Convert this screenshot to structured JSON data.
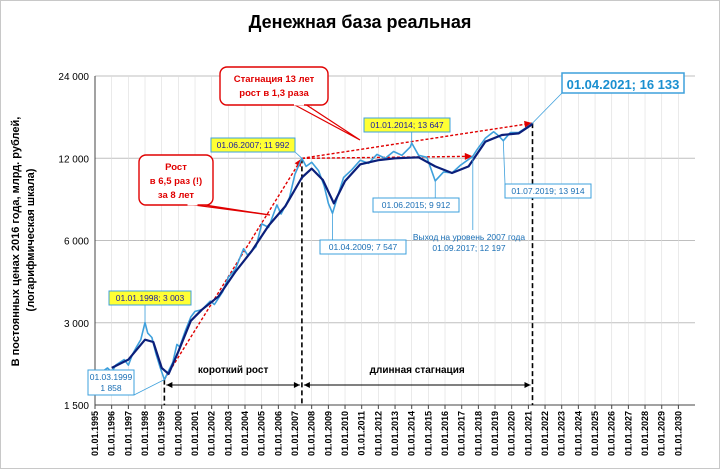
{
  "chart_data": {
    "type": "line",
    "title": "Денежная база реальная",
    "ylabel_lines": [
      "В постоянных ценах 2016 года, млрд. рублей,",
      "(логарифмическая шкала)"
    ],
    "y_scale": "log",
    "ylim": [
      1500,
      28000
    ],
    "yticks": [
      1500,
      3000,
      6000,
      12000,
      24000
    ],
    "ytick_labels": [
      "1 500",
      "3 000",
      "6 000",
      "12 000",
      "24 000"
    ],
    "xlim": [
      "1995-01-01",
      "2030-12-31"
    ],
    "xtick_labels": [
      "01.01.1995",
      "01.01.1996",
      "01.01.1997",
      "01.01.1998",
      "01.01.1999",
      "01.01.2000",
      "01.01.2001",
      "01.01.2002",
      "01.01.2003",
      "01.01.2004",
      "01.01.2005",
      "01.01.2006",
      "01.01.2007",
      "01.01.2008",
      "01.01.2009",
      "01.01.2010",
      "01.01.2011",
      "01.01.2012",
      "01.01.2013",
      "01.01.2014",
      "01.01.2015",
      "01.01.2016",
      "01.01.2017",
      "01.01.2018",
      "01.01.2019",
      "01.01.2020",
      "01.01.2021",
      "01.01.2022",
      "01.01.2023",
      "01.01.2024",
      "01.01.2025",
      "01.01.2026",
      "01.01.2027",
      "01.01.2028",
      "01.01.2029",
      "01.01.2030"
    ],
    "grid": true,
    "series": [
      {
        "key": "monthly",
        "color": "#3ea0dc",
        "points": [
          [
            "1995-07-01",
            2000
          ],
          [
            "1995-10-01",
            2050
          ],
          [
            "1996-01-01",
            1980
          ],
          [
            "1996-04-01",
            2100
          ],
          [
            "1996-07-01",
            2150
          ],
          [
            "1996-10-01",
            2200
          ],
          [
            "1997-01-01",
            2100
          ],
          [
            "1997-04-01",
            2300
          ],
          [
            "1997-07-01",
            2450
          ],
          [
            "1997-10-01",
            2600
          ],
          [
            "1998-01-01",
            3003
          ],
          [
            "1998-03-01",
            2750
          ],
          [
            "1998-06-01",
            2650
          ],
          [
            "1998-09-01",
            2300
          ],
          [
            "1998-12-01",
            2050
          ],
          [
            "1999-03-01",
            1858
          ],
          [
            "1999-06-01",
            2000
          ],
          [
            "1999-09-01",
            2150
          ],
          [
            "1999-12-01",
            2500
          ],
          [
            "2000-02-01",
            2450
          ],
          [
            "2000-06-01",
            2800
          ],
          [
            "2000-10-01",
            3150
          ],
          [
            "2001-01-01",
            3300
          ],
          [
            "2001-06-01",
            3350
          ],
          [
            "2001-12-01",
            3600
          ],
          [
            "2002-03-01",
            3500
          ],
          [
            "2002-09-01",
            3900
          ],
          [
            "2003-01-01",
            4400
          ],
          [
            "2003-06-01",
            4700
          ],
          [
            "2003-12-01",
            5600
          ],
          [
            "2004-03-01",
            5300
          ],
          [
            "2004-09-01",
            5700
          ],
          [
            "2005-01-01",
            6900
          ],
          [
            "2005-06-01",
            6700
          ],
          [
            "2005-12-01",
            8100
          ],
          [
            "2006-03-01",
            7500
          ],
          [
            "2006-09-01",
            8600
          ],
          [
            "2007-01-01",
            10500
          ],
          [
            "2007-06-01",
            11992
          ],
          [
            "2007-09-01",
            11200
          ],
          [
            "2008-01-01",
            11600
          ],
          [
            "2008-06-01",
            10800
          ],
          [
            "2008-10-01",
            9500
          ],
          [
            "2009-01-01",
            8200
          ],
          [
            "2009-04-01",
            7547
          ],
          [
            "2009-08-01",
            8800
          ],
          [
            "2009-12-01",
            10200
          ],
          [
            "2010-06-01",
            10900
          ],
          [
            "2010-12-01",
            11800
          ],
          [
            "2011-06-01",
            11500
          ],
          [
            "2011-12-01",
            12400
          ],
          [
            "2012-06-01",
            12000
          ],
          [
            "2012-12-01",
            12700
          ],
          [
            "2013-06-01",
            12300
          ],
          [
            "2013-12-01",
            13200
          ],
          [
            "2014-01-01",
            13647
          ],
          [
            "2014-06-01",
            12300
          ],
          [
            "2014-12-01",
            12100
          ],
          [
            "2015-06-01",
            9912
          ],
          [
            "2015-12-01",
            10700
          ],
          [
            "2016-06-01",
            10600
          ],
          [
            "2016-12-01",
            11300
          ],
          [
            "2017-09-01",
            12197
          ],
          [
            "2017-12-01",
            12900
          ],
          [
            "2018-06-01",
            14200
          ],
          [
            "2018-12-01",
            15000
          ],
          [
            "2019-03-01",
            14600
          ],
          [
            "2019-07-01",
            13914
          ],
          [
            "2019-12-01",
            14900
          ],
          [
            "2020-06-01",
            14900
          ],
          [
            "2020-12-01",
            15600
          ],
          [
            "2021-04-01",
            16133
          ]
        ]
      },
      {
        "key": "smoothed",
        "color": "#0b1f7a",
        "points": [
          [
            "1996-01-01",
            2050
          ],
          [
            "1997-01-01",
            2200
          ],
          [
            "1998-01-01",
            2600
          ],
          [
            "1998-07-01",
            2550
          ],
          [
            "1999-01-01",
            2050
          ],
          [
            "1999-06-01",
            1950
          ],
          [
            "2000-01-01",
            2350
          ],
          [
            "2000-10-01",
            3050
          ],
          [
            "2001-06-01",
            3350
          ],
          [
            "2002-06-01",
            3750
          ],
          [
            "2003-06-01",
            4600
          ],
          [
            "2004-06-01",
            5500
          ],
          [
            "2005-06-01",
            6800
          ],
          [
            "2006-06-01",
            8000
          ],
          [
            "2007-06-01",
            10200
          ],
          [
            "2008-01-01",
            11000
          ],
          [
            "2008-09-01",
            10000
          ],
          [
            "2009-05-01",
            8200
          ],
          [
            "2010-01-01",
            9900
          ],
          [
            "2010-12-01",
            11400
          ],
          [
            "2012-01-01",
            11800
          ],
          [
            "2013-01-01",
            12000
          ],
          [
            "2014-06-01",
            12100
          ],
          [
            "2015-06-01",
            11200
          ],
          [
            "2016-06-01",
            10600
          ],
          [
            "2017-06-01",
            11200
          ],
          [
            "2018-06-01",
            13800
          ],
          [
            "2019-06-01",
            14600
          ],
          [
            "2020-06-01",
            14800
          ],
          [
            "2021-04-01",
            16000
          ]
        ]
      }
    ],
    "trend_lines": [
      {
        "key": "growth",
        "from": [
          "1999-03-01",
          1858
        ],
        "to": [
          "2007-06-01",
          11992
        ],
        "color": "#e00000"
      },
      {
        "key": "stagnation",
        "from": [
          "2007-06-01",
          11992
        ],
        "to": [
          "2021-04-01",
          16133
        ],
        "color": "#e00000"
      },
      {
        "key": "return-2007-level",
        "from": [
          "2007-06-01",
          11992
        ],
        "to": [
          "2017-09-01",
          12197
        ],
        "color": "#e00000"
      }
    ],
    "vertical_markers": [
      "1999-03-01",
      "2007-06-01",
      "2021-04-01"
    ],
    "periods": [
      {
        "label": "короткий рост",
        "from": "1999-03-01",
        "to": "2007-06-01"
      },
      {
        "label": "длинная стагнация",
        "from": "2007-06-01",
        "to": "2021-04-01"
      }
    ],
    "annotations": [
      {
        "key": "1998",
        "lines": [
          "01.01.1998; 3 003"
        ],
        "style": "yellow"
      },
      {
        "key": "1999",
        "lines": [
          "01.03.1999",
          "1 858"
        ],
        "style": "blue"
      },
      {
        "key": "2007",
        "lines": [
          "01.06.2007; 11 992"
        ],
        "style": "yellow"
      },
      {
        "key": "2009",
        "lines": [
          "01.04.2009; 7 547"
        ],
        "style": "blue"
      },
      {
        "key": "2014",
        "lines": [
          "01.01.2014; 13 647"
        ],
        "style": "yellow"
      },
      {
        "key": "2015",
        "lines": [
          "01.06.2015; 9 912"
        ],
        "style": "blue"
      },
      {
        "key": "2017",
        "lines": [
          "Выход на уровень 2007 года",
          "01.09.2017; 12 197"
        ],
        "style": "plain"
      },
      {
        "key": "2019",
        "lines": [
          "01.07.2019; 13 914"
        ],
        "style": "blue"
      },
      {
        "key": "2021",
        "lines": [
          "01.04.2021; 16 133"
        ],
        "style": "big"
      }
    ],
    "callouts": [
      {
        "key": "growth",
        "lines": [
          "Рост",
          "в 6,5 раз (!)",
          "за 8 лет"
        ]
      },
      {
        "key": "stagnation",
        "lines": [
          "Стагнация 13 лет",
          "рост в 1,3 раза"
        ]
      }
    ],
    "colors": {
      "grid": "#bfbfbf",
      "annotation_border": "#3ea0dc",
      "annotation_yellow": "#ffff33",
      "callout_border": "#e00000"
    }
  }
}
